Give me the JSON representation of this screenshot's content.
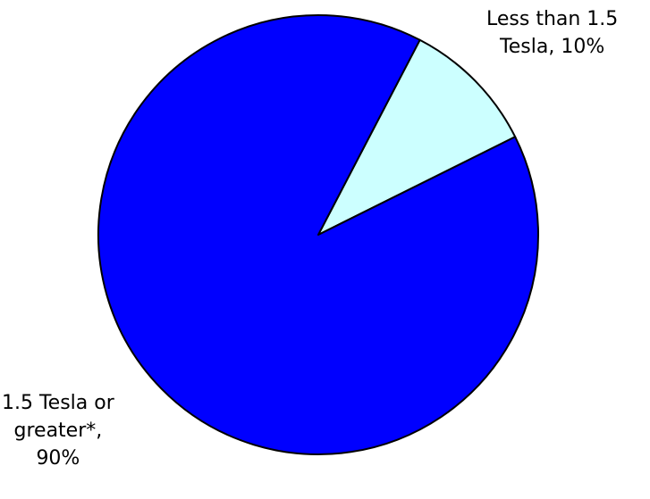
{
  "chart_data": {
    "type": "pie",
    "start_angle_deg": 0,
    "direction": "clockwise",
    "slices": [
      {
        "label_lines": [
          "Less than 1.5",
          "Tesla, 10%"
        ],
        "name": "Less than 1.5 Tesla",
        "value": 10,
        "color": "#ccffff"
      },
      {
        "label_lines": [
          "1.5 Tesla or",
          "greater*,",
          "90%"
        ],
        "name": "1.5 Tesla or greater*",
        "value": 90,
        "color": "#0000ff"
      }
    ],
    "stroke_color": "#000000"
  }
}
